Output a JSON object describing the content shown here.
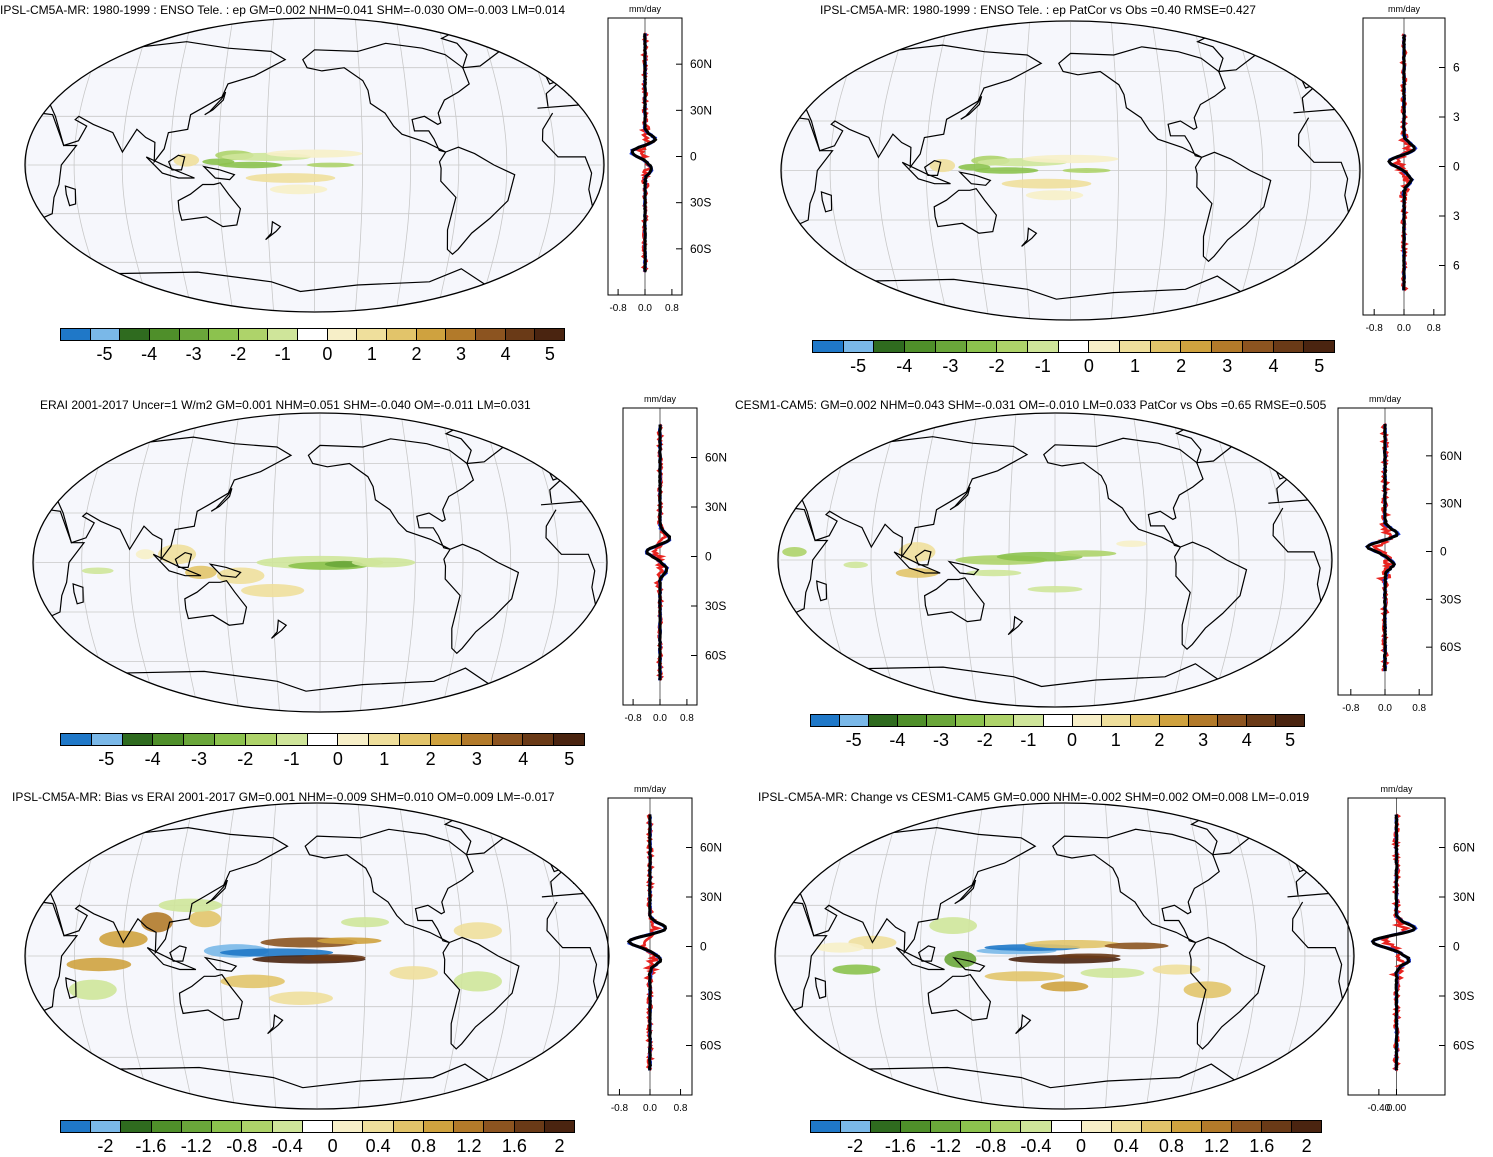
{
  "panels": [
    {
      "title": "IPSL-CM5A-MR: 1980-1999 : ENSO Tele. : ep GM=0.002 NHM=0.041 SHM=-0.030 OM=-0.003 LM=0.014",
      "profile_unit": "mm/day",
      "profile_x_ticks": [
        "-0.8",
        "0.0",
        "0.8"
      ],
      "profile_y_ticks": [
        "60N",
        "30N",
        "0",
        "30S",
        "60S"
      ],
      "colorbar_labels": [
        "-5",
        "-4",
        "-3",
        "-2",
        "-1",
        "0",
        "1",
        "2",
        "3",
        "4",
        "5"
      ]
    },
    {
      "title": "IPSL-CM5A-MR: 1980-1999 : ENSO Tele. : ep PatCor vs Obs =0.40 RMSE=0.427",
      "profile_unit": "mm/day",
      "profile_x_ticks": [
        "-0.8",
        "0.0",
        "0.8"
      ],
      "profile_y_ticks": [
        "6",
        "3",
        "0",
        "3",
        "6"
      ],
      "colorbar_labels": [
        "-5",
        "-4",
        "-3",
        "-2",
        "-1",
        "0",
        "1",
        "2",
        "3",
        "4",
        "5"
      ]
    },
    {
      "title": "ERAI 2001-2017 Uncer=1 W/m2 GM=0.001 NHM=0.051 SHM=-0.040 OM=-0.011 LM=0.031",
      "profile_unit": "mm/day",
      "profile_x_ticks": [
        "-0.8",
        "0.0",
        "0.8"
      ],
      "profile_y_ticks": [
        "60N",
        "30N",
        "0",
        "30S",
        "60S"
      ],
      "colorbar_labels": [
        "-5",
        "-4",
        "-3",
        "-2",
        "-1",
        "0",
        "1",
        "2",
        "3",
        "4",
        "5"
      ]
    },
    {
      "title": "CESM1-CAM5: GM=0.002 NHM=0.043 SHM=-0.031 OM=-0.010 LM=0.033 PatCor vs Obs =0.65 RMSE=0.505",
      "profile_unit": "mm/day",
      "profile_x_ticks": [
        "-0.8",
        "0.0",
        "0.8"
      ],
      "profile_y_ticks": [
        "60N",
        "30N",
        "0",
        "30S",
        "60S"
      ],
      "colorbar_labels": [
        "-5",
        "-4",
        "-3",
        "-2",
        "-1",
        "0",
        "1",
        "2",
        "3",
        "4",
        "5"
      ]
    },
    {
      "title": "IPSL-CM5A-MR: Bias vs ERAI 2001-2017 GM=0.001 NHM=-0.009 SHM=0.010 OM=0.009 LM=-0.017",
      "profile_unit": "mm/day",
      "profile_x_ticks": [
        "-0.8",
        "0.0",
        "0.8"
      ],
      "profile_y_ticks": [
        "60N",
        "30N",
        "0",
        "30S",
        "60S"
      ],
      "colorbar_labels": [
        "-2",
        "-1.6",
        "-1.2",
        "-0.8",
        "-0.4",
        "0",
        "0.4",
        "0.8",
        "1.2",
        "1.6",
        "2"
      ]
    },
    {
      "title": "IPSL-CM5A-MR: Change vs CESM1-CAM5 GM=0.000 NHM=-0.002 SHM=0.002 OM=0.008 LM=-0.019",
      "profile_unit": "mm/day",
      "profile_x_ticks": [
        "-0.40",
        "0.00"
      ],
      "profile_y_ticks": [
        "60N",
        "30N",
        "0",
        "30S",
        "60S"
      ],
      "colorbar_labels": [
        "-2",
        "-1.6",
        "-1.2",
        "-0.8",
        "-0.4",
        "0",
        "0.4",
        "0.8",
        "1.2",
        "1.6",
        "2"
      ]
    }
  ],
  "colors": {
    "palette": [
      "#1f78c8",
      "#7ab8e8",
      "#2f6b1f",
      "#4f8f2a",
      "#6aa63a",
      "#8cc24e",
      "#aed36a",
      "#cfe59a",
      "#ffffff",
      "#f7efc8",
      "#efdf9c",
      "#e2c46a",
      "#cfa23f",
      "#b27a2a",
      "#8c5420",
      "#6a3a17",
      "#4a2410"
    ],
    "ocean_bg": "#f6f7fc",
    "graticule": "#c8c8c8",
    "profile_model": "#e8231f",
    "profile_obs": "#1f3fe0",
    "profile_mean": "#000000"
  }
}
